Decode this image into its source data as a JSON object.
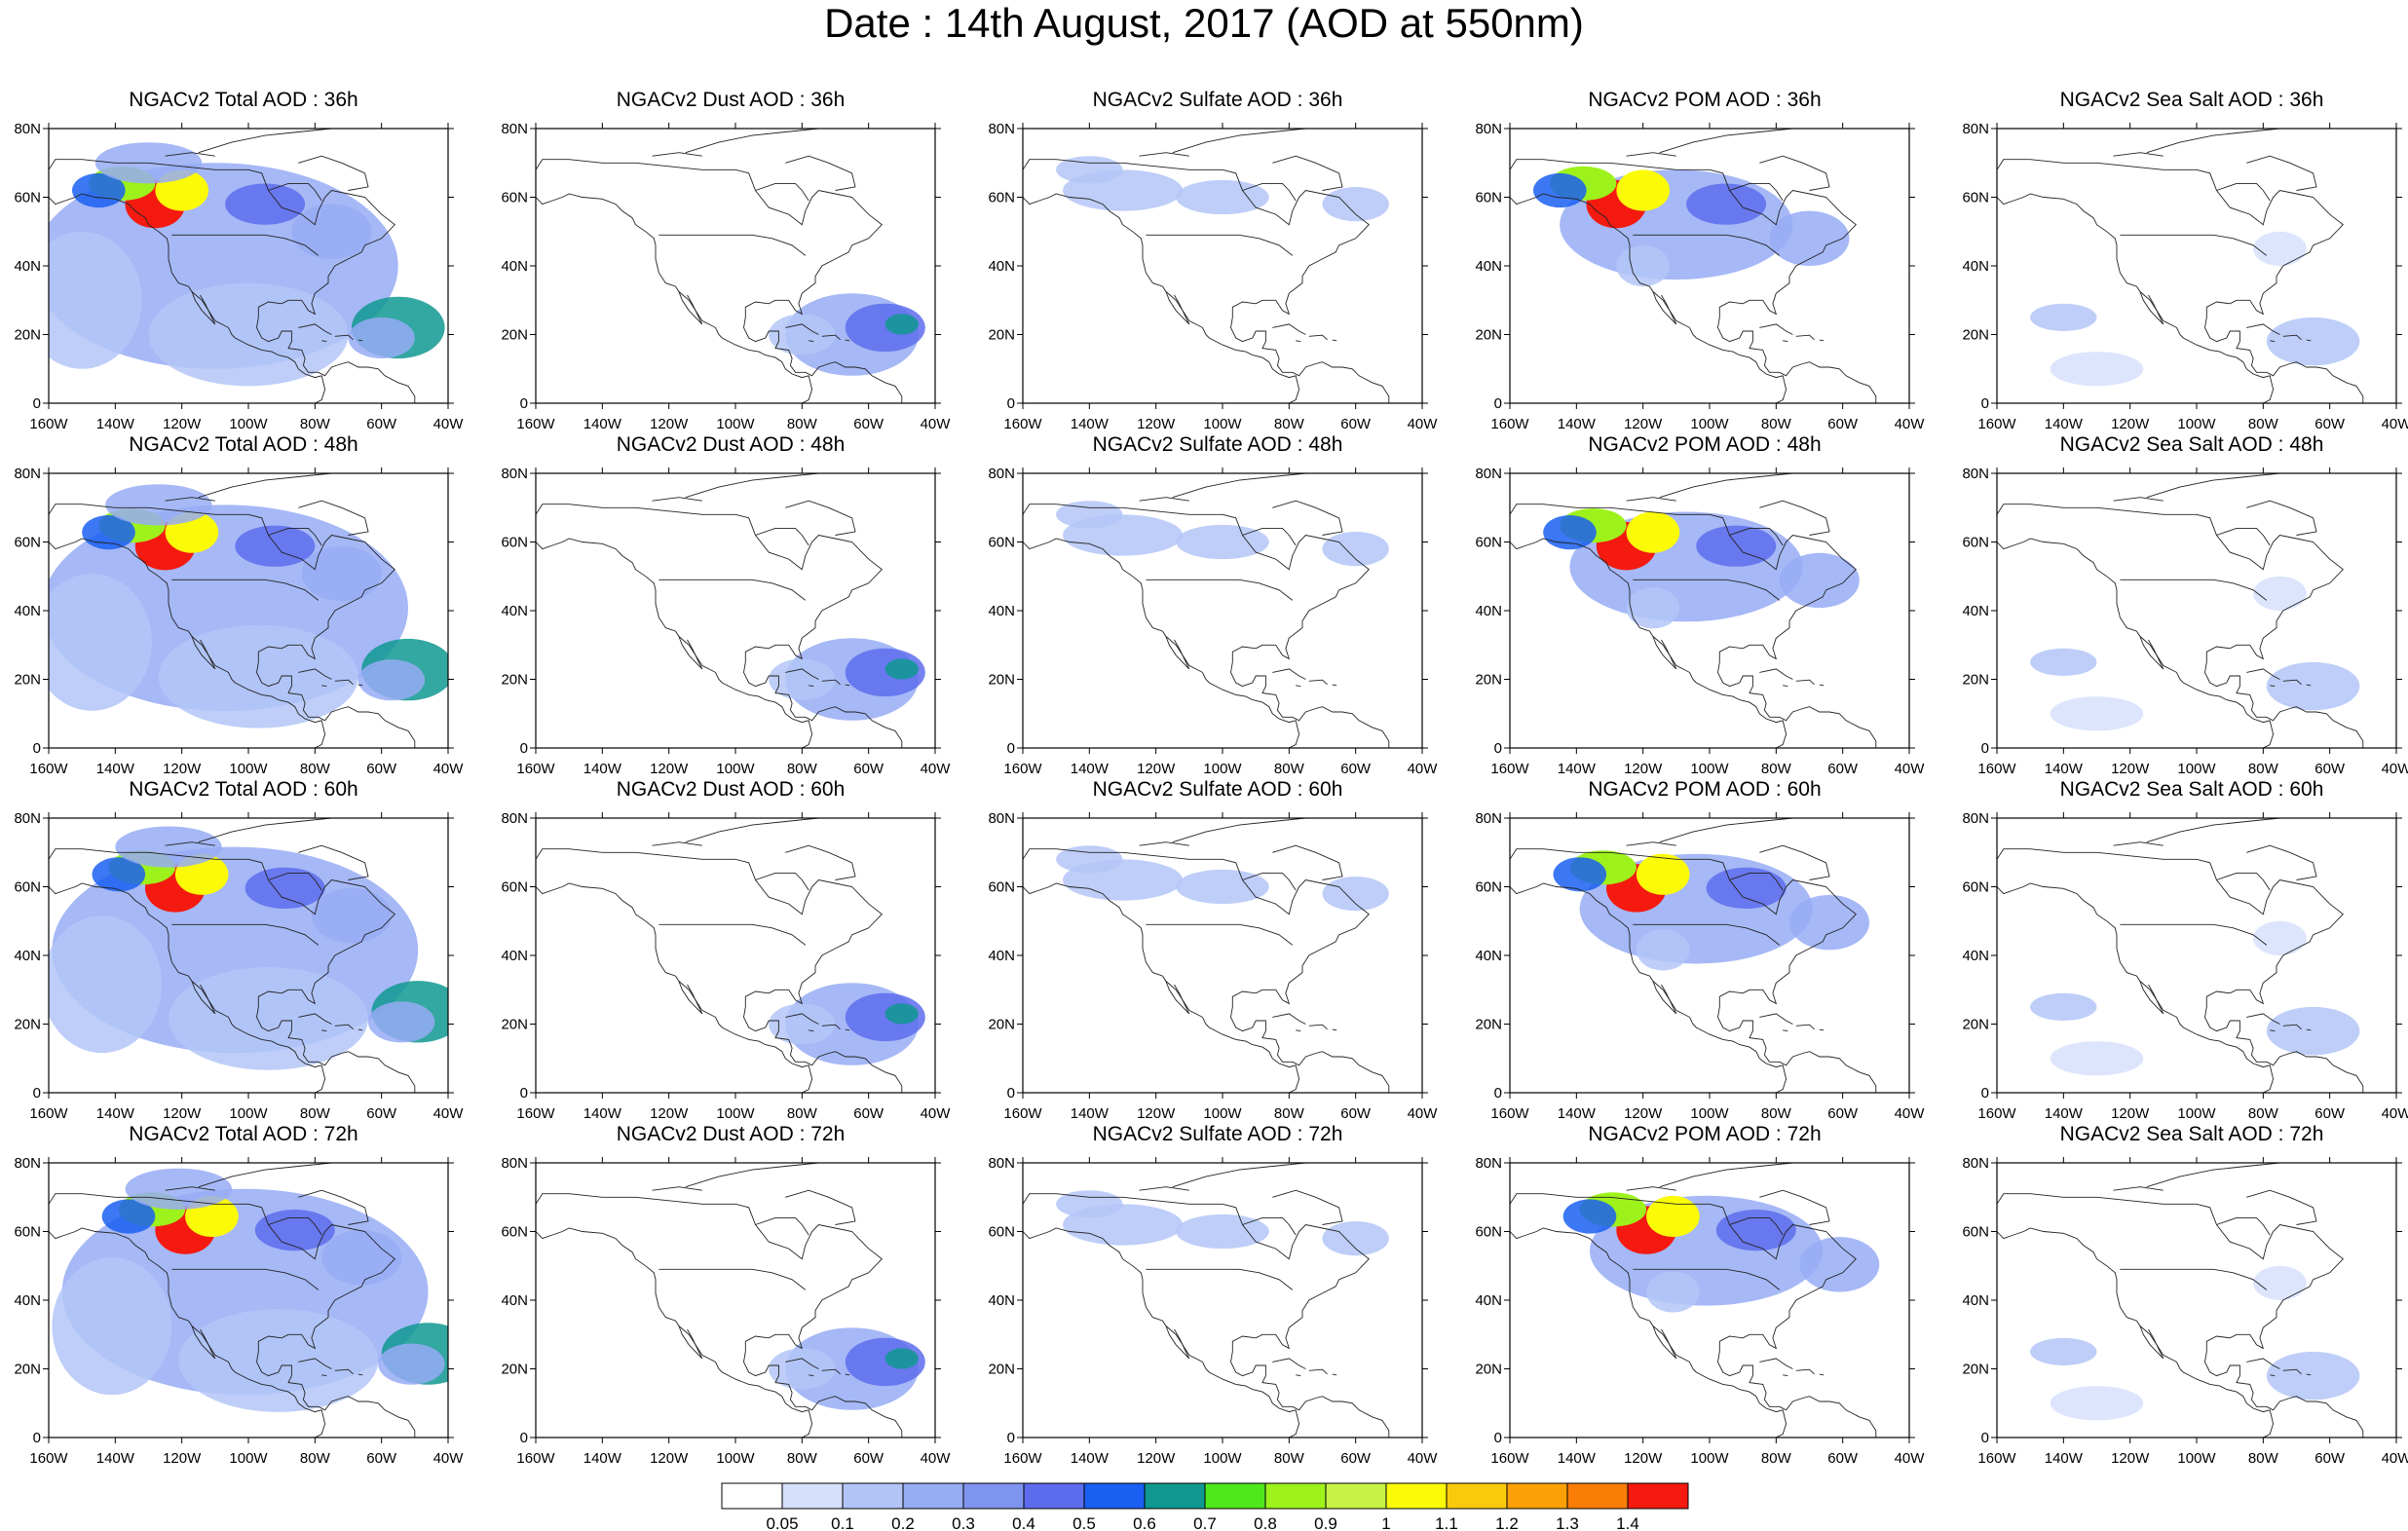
{
  "figure": {
    "title": "Date : 14th August, 2017 (AOD at 550nm)"
  },
  "axes": {
    "lat_labels": [
      "80N",
      "60N",
      "40N",
      "20N",
      "0"
    ],
    "lon_labels": [
      "160W",
      "140W",
      "120W",
      "100W",
      "80W",
      "60W",
      "40W"
    ]
  },
  "panels": [
    {
      "title": "NGACv2 Total AOD : 36h",
      "species": "total"
    },
    {
      "title": "NGACv2 Dust AOD : 36h",
      "species": "dust"
    },
    {
      "title": "NGACv2 Sulfate AOD : 36h",
      "species": "sulfate"
    },
    {
      "title": "NGACv2 POM AOD : 36h",
      "species": "pom"
    },
    {
      "title": "NGACv2 Sea Salt AOD : 36h",
      "species": "seasalt"
    },
    {
      "title": "NGACv2 Total AOD : 48h",
      "species": "total"
    },
    {
      "title": "NGACv2 Dust AOD : 48h",
      "species": "dust"
    },
    {
      "title": "NGACv2 Sulfate AOD : 48h",
      "species": "sulfate"
    },
    {
      "title": "NGACv2 POM AOD : 48h",
      "species": "pom"
    },
    {
      "title": "NGACv2 Sea Salt AOD : 48h",
      "species": "seasalt"
    },
    {
      "title": "NGACv2 Total AOD : 60h",
      "species": "total"
    },
    {
      "title": "NGACv2 Dust AOD : 60h",
      "species": "dust"
    },
    {
      "title": "NGACv2 Sulfate AOD : 60h",
      "species": "sulfate"
    },
    {
      "title": "NGACv2 POM AOD : 60h",
      "species": "pom"
    },
    {
      "title": "NGACv2 Sea Salt AOD : 60h",
      "species": "seasalt"
    },
    {
      "title": "NGACv2 Total AOD : 72h",
      "species": "total"
    },
    {
      "title": "NGACv2 Dust AOD : 72h",
      "species": "dust"
    },
    {
      "title": "NGACv2 Sulfate AOD : 72h",
      "species": "sulfate"
    },
    {
      "title": "NGACv2 POM AOD : 72h",
      "species": "pom"
    },
    {
      "title": "NGACv2 Sea Salt  AOD : 72h",
      "species": "seasalt"
    }
  ],
  "colorbar": {
    "labels": [
      "0.05",
      "0.1",
      "0.2",
      "0.3",
      "0.4",
      "0.5",
      "0.6",
      "0.7",
      "0.8",
      "0.9",
      "1",
      "1.1",
      "1.2",
      "1.3",
      "1.4"
    ],
    "colors": [
      "#ffffff",
      "#d6e0fb",
      "#b3c5f7",
      "#96acf4",
      "#7f94ee",
      "#5d6cec",
      "#1a5ff2",
      "#0f9890",
      "#4fe81c",
      "#9ef21c",
      "#c7f347",
      "#fbfb08",
      "#fbc90b",
      "#fba007",
      "#f97d07",
      "#f41a10"
    ]
  },
  "features": [
    {
      "species": "total",
      "hour": "36h",
      "lon": -130,
      "lat": 58,
      "level": 15
    },
    {
      "species": "total",
      "hour": "36h",
      "lon": -140,
      "lat": 63,
      "level": 10
    },
    {
      "species": "total",
      "hour": "36h",
      "lon": -55,
      "lat": 20,
      "level": 7
    }
  ]
}
